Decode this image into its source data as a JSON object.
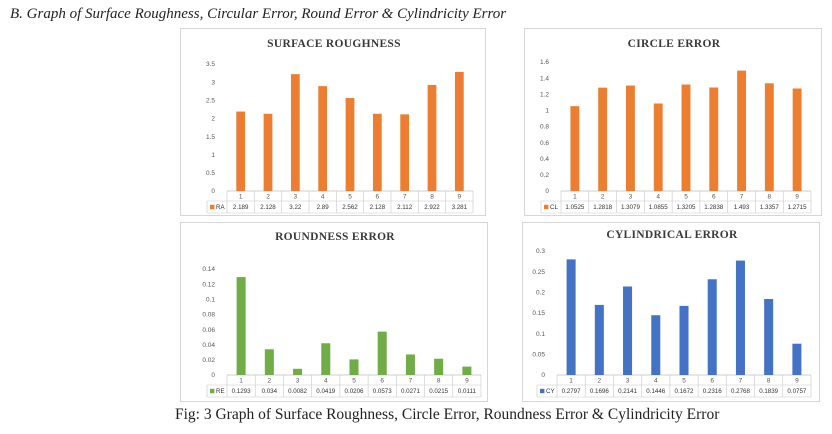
{
  "heading": "B.  Graph of Surface Roughness, Circular Error, Round Error & Cylindricity Error",
  "caption": "Fig: 3 Graph of Surface Roughness, Circle Error, Roundness Error & Cylindricity Error",
  "chart_data": [
    {
      "id": "sr",
      "type": "bar",
      "title": "SURFACE ROUGHNESS",
      "color": "#ED7D31",
      "categories": [
        "1",
        "2",
        "3",
        "4",
        "5",
        "6",
        "7",
        "8",
        "9"
      ],
      "series": [
        {
          "name": "RA",
          "values": [
            2.189,
            2.128,
            3.22,
            2.89,
            2.562,
            2.128,
            2.112,
            2.922,
            3.281
          ]
        }
      ],
      "value_labels": [
        "2.189",
        "2.128",
        "3.22",
        "2.89",
        "2.562",
        "2.128",
        "2.112",
        "2.922",
        "3.281"
      ],
      "yticks": [
        "0",
        "0.5",
        "1",
        "1.5",
        "2",
        "2.5",
        "3",
        "3.5"
      ],
      "ylim": [
        0,
        3.5
      ],
      "grid": false,
      "legend": "data-table"
    },
    {
      "id": "ce",
      "type": "bar",
      "title": "CIRCLE ERROR",
      "color": "#ED7D31",
      "categories": [
        "1",
        "2",
        "3",
        "4",
        "5",
        "6",
        "7",
        "8",
        "9"
      ],
      "series": [
        {
          "name": "CL",
          "values": [
            1.0525,
            1.2818,
            1.3079,
            1.0855,
            1.3205,
            1.2838,
            1.493,
            1.3357,
            1.2715
          ]
        }
      ],
      "value_labels": [
        "1.0525",
        "1.2818",
        "1.3079",
        "1.0855",
        "1.3205",
        "1.2838",
        "1.493",
        "1.3357",
        "1.2715"
      ],
      "yticks": [
        "0",
        "0.2",
        "0.4",
        "0.6",
        "0.8",
        "1",
        "1.2",
        "1.4",
        "1.6"
      ],
      "ylim": [
        0,
        1.6
      ],
      "grid": false,
      "legend": "data-table"
    },
    {
      "id": "re",
      "type": "bar",
      "title": "ROUNDNESS ERROR",
      "color": "#70AD47",
      "categories": [
        "1",
        "2",
        "3",
        "4",
        "5",
        "6",
        "7",
        "8",
        "9"
      ],
      "series": [
        {
          "name": "RE",
          "values": [
            0.1293,
            0.034,
            0.0082,
            0.0419,
            0.0206,
            0.0573,
            0.0271,
            0.0215,
            0.0111
          ]
        }
      ],
      "value_labels": [
        "0.1293",
        "0.034",
        "0.0082",
        "0.0419",
        "0.0206",
        "0.0573",
        "0.0271",
        "0.0215",
        "0.0111"
      ],
      "yticks": [
        "0",
        "0.02",
        "0.04",
        "0.06",
        "0.08",
        "0.1",
        "0.12",
        "0.14"
      ],
      "ylim": [
        0,
        0.14
      ],
      "grid": false,
      "legend": "data-table"
    },
    {
      "id": "cy",
      "type": "bar",
      "title": "CYLINDRICAL ERROR",
      "color": "#4472C4",
      "categories": [
        "1",
        "2",
        "3",
        "4",
        "5",
        "6",
        "7",
        "8",
        "9"
      ],
      "series": [
        {
          "name": "CY",
          "values": [
            0.2797,
            0.1696,
            0.2141,
            0.1446,
            0.1672,
            0.2316,
            0.2768,
            0.1839,
            0.0757
          ]
        }
      ],
      "value_labels": [
        "0.2797",
        "0.1696",
        "0.2141",
        "0.1446",
        "0.1672",
        "0.2316",
        "0.2768",
        "0.1839",
        "0.0757"
      ],
      "yticks": [
        "0",
        "0.05",
        "0.1",
        "0.15",
        "0.2",
        "0.25",
        "0.3"
      ],
      "ylim": [
        0,
        0.3
      ],
      "grid": false,
      "legend": "data-table"
    }
  ]
}
